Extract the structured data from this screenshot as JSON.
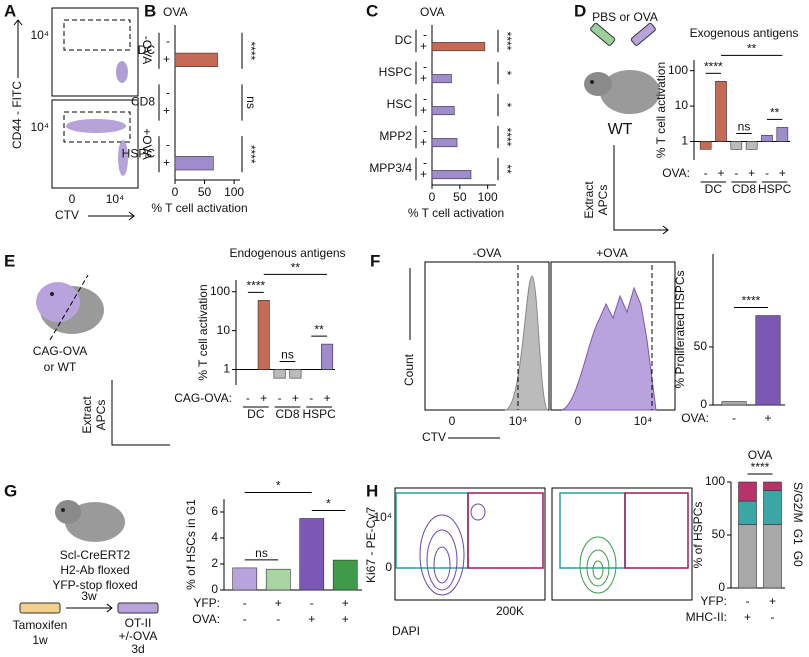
{
  "panel_letters": [
    "A",
    "B",
    "C",
    "D",
    "E",
    "F",
    "G",
    "H"
  ],
  "panel_a": {
    "y_label": "CD44 - FITC",
    "x_label": "CTV",
    "conditions": [
      "-OVA",
      "+OVA"
    ],
    "y_tick_labels": [
      "10⁴",
      "10⁴"
    ],
    "x_tick_labels": [
      "0",
      "10⁴"
    ]
  },
  "panel_d_scheme": {
    "injection": "PBS or OVA",
    "mouse": "WT",
    "extract": [
      "Extract",
      "APCs"
    ]
  },
  "panel_e_scheme": {
    "mouse": [
      "CAG-OVA",
      "or WT"
    ],
    "extract": [
      "Extract",
      "APCs"
    ]
  },
  "panel_f_histograms": {
    "conditions": [
      "-OVA",
      "+OVA"
    ],
    "x_label": "CTV",
    "y_label": "Count",
    "x_tick_labels": [
      "0",
      "10⁴",
      "0",
      "10⁴"
    ]
  },
  "panel_g_scheme": {
    "mouse": [
      "Scl-CreERT2",
      "H2-Ab floxed",
      "YFP-stop floxed"
    ],
    "first_step": [
      "Tamoxifen",
      "1w"
    ],
    "interval": "3w",
    "second_step": [
      "OT-II",
      "+/-OVA",
      "3d"
    ]
  },
  "panel_h_flow": {
    "y_label": "Ki67 - PE-Cy7",
    "x_label": "DAPI",
    "y_tick_labels": [
      "10⁴",
      "0"
    ],
    "x_tick_labels": [
      "200K"
    ]
  },
  "chart_data": [
    {
      "type": "hbar",
      "title": "OVA",
      "x_label": "% T cell activation",
      "groups": [
        {
          "name": "DC",
          "color": "#b5332a"
        },
        {
          "name": "CD8",
          "color": "#a0a0a0"
        },
        {
          "name": "HSPC",
          "color": "#6a46a8"
        }
      ],
      "categories": [
        "-",
        "+",
        "-",
        "+",
        "-",
        "+"
      ],
      "values": [
        0,
        72,
        0,
        0,
        0,
        65
      ],
      "colors": [
        "#c46a55",
        "#c46a55",
        "#bbbbbb",
        "#bbbbbb",
        "#9f8ccb",
        "#9f8ccb"
      ],
      "xlim": [
        0,
        110
      ],
      "xticks": [
        0,
        50,
        100
      ],
      "significance": [
        "****",
        "ns",
        "****"
      ]
    },
    {
      "type": "hbar",
      "title": "OVA",
      "x_label": "% T cell activation",
      "groups": [
        {
          "name": "DC",
          "color": "#b5332a"
        },
        {
          "name": "HSPC",
          "color": "#6a46a8"
        },
        {
          "name": "HSC",
          "color": "#6a46a8"
        },
        {
          "name": "MPP2",
          "color": "#6a46a8"
        },
        {
          "name": "MPP3/4",
          "color": "#6a46a8"
        }
      ],
      "categories": [
        "-",
        "+",
        "-",
        "+",
        "-",
        "+",
        "-",
        "+",
        "-",
        "+"
      ],
      "values": [
        0,
        95,
        0,
        35,
        0,
        40,
        0,
        45,
        0,
        70
      ],
      "colors": [
        "#c46a55",
        "#c46a55",
        "#9f8ccb",
        "#9f8ccb",
        "#9f8ccb",
        "#9f8ccb",
        "#9f8ccb",
        "#9f8ccb",
        "#9f8ccb",
        "#9f8ccb"
      ],
      "xlim": [
        0,
        115
      ],
      "xticks": [
        0,
        50,
        100
      ],
      "significance": [
        "****",
        "*",
        "*",
        "****",
        "**"
      ]
    },
    {
      "type": "bar",
      "title": "Exogenous antigens",
      "y_label": "% T cell activation",
      "log_scale": true,
      "category_label": "OVA:",
      "categories": [
        "-",
        "+",
        "-",
        "+",
        "-",
        "+"
      ],
      "groups": [
        {
          "name": "DC",
          "color": "#b5332a"
        },
        {
          "name": "CD8",
          "color": "#a0a0a0"
        },
        {
          "name": "HSPC",
          "color": "#6a46a8"
        }
      ],
      "values": [
        0.6,
        50,
        0.6,
        0.6,
        1.5,
        2.5
      ],
      "colors": [
        "#c46a55",
        "#c46a55",
        "#bbbbbb",
        "#bbbbbb",
        "#9f8ccb",
        "#9f8ccb"
      ],
      "ylim": [
        0.3,
        200
      ],
      "yticks": [
        1,
        10,
        100
      ],
      "significance": [
        {
          "text": "****",
          "bars": [
            0,
            1
          ]
        },
        {
          "text": "ns",
          "bars": [
            2,
            3
          ]
        },
        {
          "text": "**",
          "bars": [
            4,
            5
          ]
        },
        {
          "text": "**",
          "bars": [
            1,
            5
          ]
        }
      ]
    },
    {
      "type": "bar",
      "title": "Endogenous antigens",
      "y_label": "% T cell activation",
      "log_scale": true,
      "category_label": "CAG-OVA:",
      "categories": [
        "-",
        "+",
        "-",
        "+",
        "-",
        "+"
      ],
      "groups": [
        {
          "name": "DC",
          "color": "#b5332a"
        },
        {
          "name": "CD8",
          "color": "#a0a0a0"
        },
        {
          "name": "HSPC",
          "color": "#6a46a8"
        }
      ],
      "values": [
        1,
        60,
        0.6,
        0.6,
        1,
        4.5
      ],
      "colors": [
        "#c46a55",
        "#c46a55",
        "#bbbbbb",
        "#bbbbbb",
        "#9f8ccb",
        "#9f8ccb"
      ],
      "ylim": [
        0.4,
        200
      ],
      "yticks": [
        1,
        10,
        100
      ],
      "significance": [
        {
          "text": "****",
          "bars": [
            0,
            1
          ]
        },
        {
          "text": "ns",
          "bars": [
            2,
            3
          ]
        },
        {
          "text": "**",
          "bars": [
            4,
            5
          ]
        },
        {
          "text": "**",
          "bars": [
            1,
            5
          ]
        }
      ]
    },
    {
      "type": "bar",
      "y_label": "% Proliferated HSPCs",
      "category_label": "OVA:",
      "categories": [
        "-",
        "+"
      ],
      "values": [
        3,
        77
      ],
      "colors": [
        "#aaaaaa",
        "#7b58b5"
      ],
      "ylim": [
        0,
        130
      ],
      "yticks": [
        0,
        50
      ],
      "significance": [
        {
          "text": "****",
          "bars": [
            0,
            1
          ]
        }
      ]
    },
    {
      "type": "bar",
      "y_label": "% of HSCs in G1",
      "rows": [
        {
          "label": "YFP:",
          "values": [
            "-",
            "+",
            "-",
            "+"
          ]
        },
        {
          "label": "OVA:",
          "values": [
            "-",
            "-",
            "+",
            "+"
          ]
        }
      ],
      "values": [
        1.7,
        1.6,
        5.5,
        2.3
      ],
      "colors": [
        "#b9a3dd",
        "#a8d5a2",
        "#7b58b5",
        "#3f9a4a"
      ],
      "ylim": [
        0,
        7
      ],
      "yticks": [
        0,
        2,
        4,
        6
      ],
      "significance": [
        {
          "text": "ns",
          "bars": [
            0,
            1
          ]
        },
        {
          "text": "*",
          "bars": [
            0,
            2
          ]
        },
        {
          "text": "*",
          "bars": [
            2,
            3
          ]
        }
      ]
    },
    {
      "type": "stacked_bar",
      "title": "OVA",
      "y_label": "% of HSPCs",
      "rows": [
        {
          "label": "YFP:",
          "values": [
            "-",
            "+"
          ]
        },
        {
          "label": "MHC-II:",
          "values": [
            "+",
            "-"
          ]
        }
      ],
      "series": [
        {
          "name": "G0",
          "color": "#a8a8a8",
          "values": [
            60,
            60
          ]
        },
        {
          "name": "G1",
          "color": "#3aa6a6",
          "values": [
            22,
            32
          ]
        },
        {
          "name": "S/G2/M",
          "color": "#b8336a",
          "values": [
            18,
            8
          ]
        }
      ],
      "ylim": [
        0,
        100
      ],
      "yticks": [
        0,
        50,
        100
      ],
      "significance": [
        {
          "text": "****",
          "bars": [
            0,
            1
          ]
        }
      ]
    }
  ]
}
